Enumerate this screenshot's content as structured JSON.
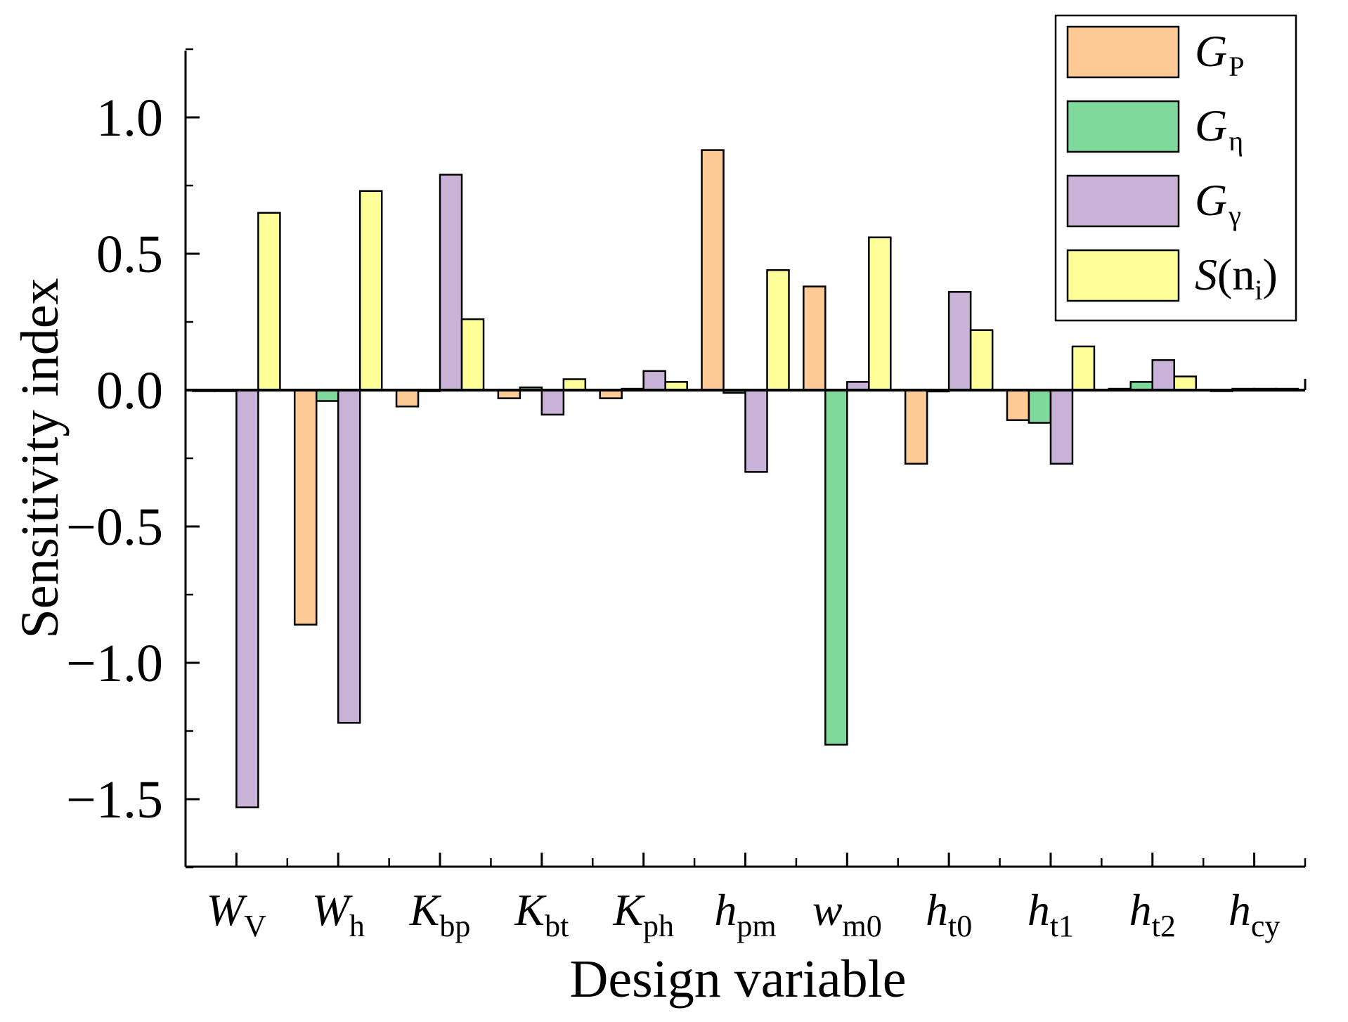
{
  "chart_data": {
    "type": "bar",
    "title": "",
    "xlabel": "Design variable",
    "ylabel": "Sensitivity index",
    "ylim": [
      -1.75,
      1.25
    ],
    "yticks": [
      1.0,
      0.5,
      0.0,
      -0.5,
      -1.0,
      -1.5
    ],
    "ytick_labels": [
      "1.0",
      "0.5",
      "0.0",
      "−0.5",
      "−1.0",
      "−1.5"
    ],
    "grid": false,
    "legend_position": "top-right",
    "categories": [
      {
        "main": "W",
        "sub": "V"
      },
      {
        "main": "W",
        "sub": "h"
      },
      {
        "main": "K",
        "sub": "bp"
      },
      {
        "main": "K",
        "sub": "bt"
      },
      {
        "main": "K",
        "sub": "ph"
      },
      {
        "main": "h",
        "sub": "pm"
      },
      {
        "main": "w",
        "sub": "m0"
      },
      {
        "main": "h",
        "sub": "t0"
      },
      {
        "main": "h",
        "sub": "t1"
      },
      {
        "main": "h",
        "sub": "t2"
      },
      {
        "main": "h",
        "sub": "cy"
      }
    ],
    "series": [
      {
        "name": "G_P",
        "label_main": "G",
        "label_sub": "P",
        "color": "#FDC995",
        "values": [
          0.0,
          -0.86,
          -0.06,
          -0.03,
          -0.03,
          0.88,
          0.38,
          -0.27,
          -0.11,
          0.005,
          0.0
        ]
      },
      {
        "name": "G_η",
        "label_main": "G",
        "label_sub": "η",
        "color": "#7FD99C",
        "values": [
          0.0,
          -0.04,
          0.0,
          0.01,
          0.005,
          -0.01,
          -1.3,
          -0.005,
          -0.12,
          0.03,
          0.005
        ]
      },
      {
        "name": "G_γ",
        "label_main": "G",
        "label_sub": "γ",
        "color": "#C9B2D7",
        "values": [
          -1.53,
          -1.22,
          0.79,
          -0.09,
          0.07,
          -0.3,
          0.03,
          0.36,
          -0.27,
          0.11,
          0.005
        ]
      },
      {
        "name": "S(n_i)",
        "label_main": "S",
        "label_open": "(n",
        "label_sub": "i",
        "label_close": ")",
        "color": "#FFFF99",
        "values": [
          0.65,
          0.73,
          0.26,
          0.04,
          0.03,
          0.44,
          0.56,
          0.22,
          0.16,
          0.05,
          0.005
        ]
      }
    ]
  }
}
